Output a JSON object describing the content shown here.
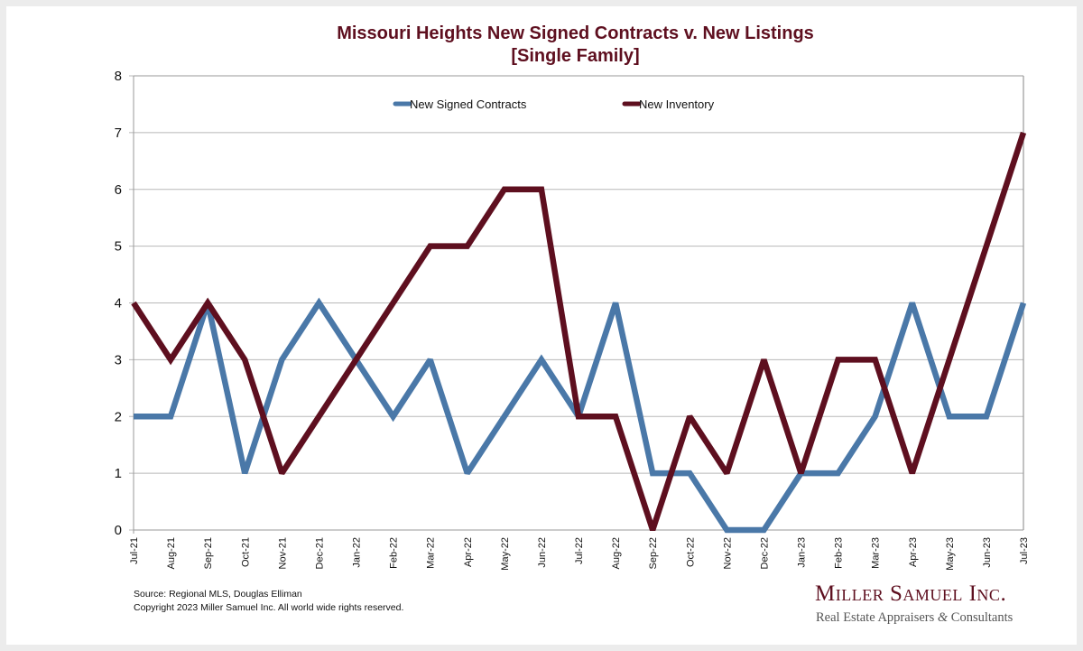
{
  "chart_data": {
    "type": "line",
    "title": "Missouri Heights New Signed Contracts v. New Listings",
    "subtitle": "[Single Family]",
    "xlabel": "",
    "ylabel": "",
    "ylim": [
      0,
      8
    ],
    "yticks": [
      "0",
      "1",
      "2",
      "3",
      "4",
      "5",
      "6",
      "7",
      "8"
    ],
    "grid": true,
    "legend_position": "top-center",
    "categories": [
      "Jul-21",
      "Aug-21",
      "Sep-21",
      "Oct-21",
      "Nov-21",
      "Dec-21",
      "Jan-22",
      "Feb-22",
      "Mar-22",
      "Apr-22",
      "May-22",
      "Jun-22",
      "Jul-22",
      "Aug-22",
      "Sep-22",
      "Oct-22",
      "Nov-22",
      "Dec-22",
      "Jan-23",
      "Feb-23",
      "Mar-23",
      "Apr-23",
      "May-23",
      "Jun-23",
      "Jul-23"
    ],
    "series": [
      {
        "name": "New Signed Contracts",
        "color": "#4a78a8",
        "values": [
          2,
          2,
          4,
          1,
          3,
          4,
          3,
          2,
          3,
          1,
          2,
          3,
          2,
          4,
          1,
          1,
          0,
          0,
          1,
          1,
          2,
          4,
          2,
          2,
          4
        ]
      },
      {
        "name": "New Inventory",
        "color": "#5e0f1f",
        "values": [
          4,
          3,
          4,
          3,
          1,
          2,
          3,
          4,
          5,
          5,
          6,
          6,
          2,
          2,
          0,
          2,
          1,
          3,
          1,
          3,
          3,
          1,
          3,
          5,
          7
        ]
      }
    ]
  },
  "footer": {
    "source": "Source: Regional MLS, Douglas Elliman",
    "copyright": "Copyright 2023 Miller Samuel Inc.  All world wide rights reserved."
  },
  "brand": {
    "name": "Miller Samuel Inc.",
    "tagline_part1": "Real Estate Appraisers ",
    "tagline_amp": "&",
    "tagline_part2": " Consultants"
  }
}
